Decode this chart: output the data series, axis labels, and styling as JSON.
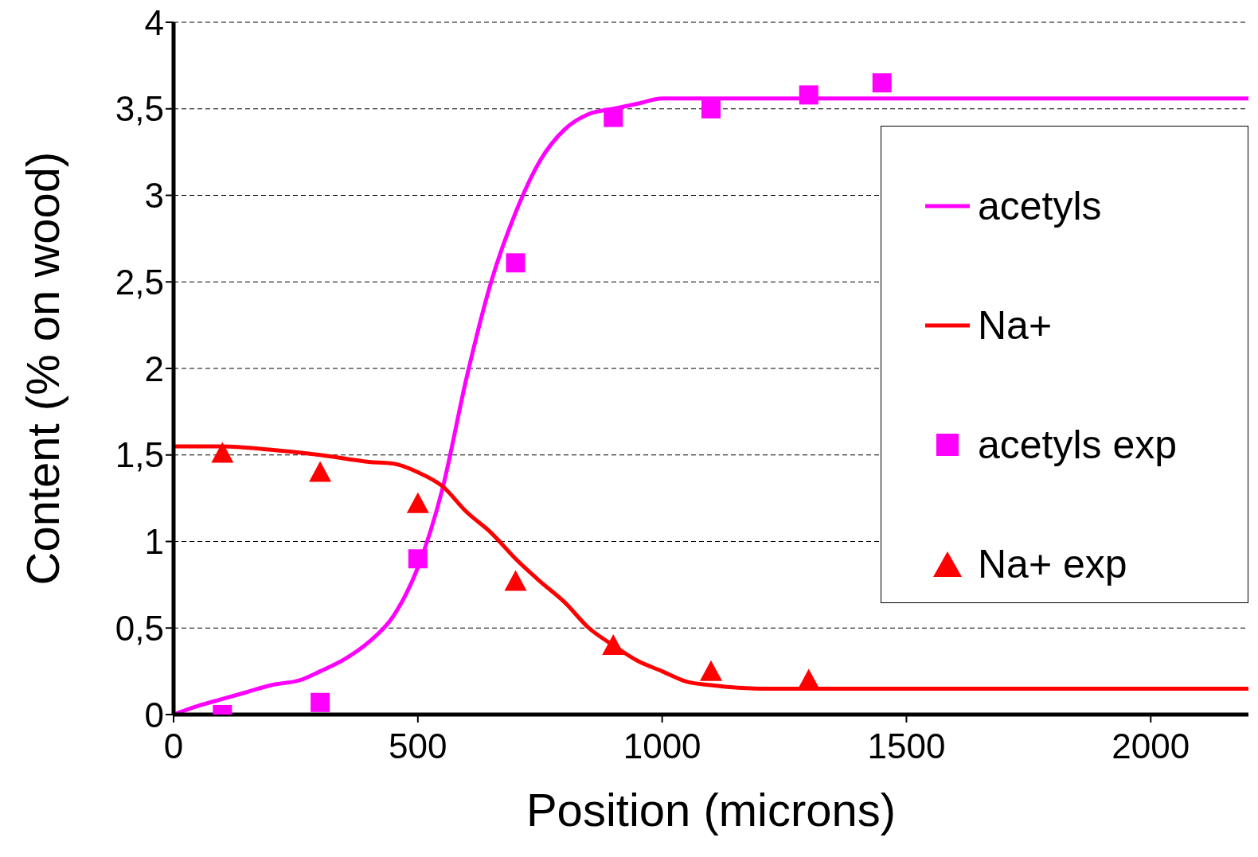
{
  "chart_data": {
    "type": "line",
    "xlabel": "Position (microns)",
    "ylabel": "Content (% on wood)",
    "xlim": [
      0,
      2200
    ],
    "xticks": [
      0,
      500,
      1000,
      1500,
      2000
    ],
    "ylim": [
      0,
      4
    ],
    "yticks": [
      0,
      {
        "value": 0.5,
        "label": "0,5"
      },
      1,
      {
        "value": 1.5,
        "label": "1,5"
      },
      2,
      {
        "value": 2.5,
        "label": "2,5"
      },
      3,
      {
        "value": 3.5,
        "label": "3,5"
      },
      4
    ],
    "grid": "y",
    "legend": "right",
    "line_style": "solid",
    "series": [
      {
        "name": "acetyls",
        "marker": "none",
        "color": "#ff00ff",
        "x": [
          0,
          50,
          100,
          150,
          200,
          260,
          300,
          350,
          400,
          450,
          500,
          550,
          600,
          650,
          700,
          750,
          800,
          850,
          900,
          950,
          1000,
          1050,
          1500,
          2200
        ],
        "values": [
          0,
          0.05,
          0.09,
          0.13,
          0.17,
          0.2,
          0.25,
          0.32,
          0.42,
          0.57,
          0.85,
          1.3,
          1.95,
          2.5,
          2.9,
          3.2,
          3.38,
          3.47,
          3.5,
          3.53,
          3.56,
          3.56,
          3.56,
          3.56
        ]
      },
      {
        "name": "Na+",
        "marker": "none",
        "color": "#ff0000",
        "x": [
          0,
          50,
          100,
          200,
          300,
          400,
          450,
          500,
          550,
          600,
          650,
          700,
          750,
          800,
          850,
          900,
          950,
          1000,
          1050,
          1100,
          1200,
          2200
        ],
        "values": [
          1.55,
          1.55,
          1.55,
          1.53,
          1.5,
          1.46,
          1.45,
          1.4,
          1.32,
          1.17,
          1.05,
          0.9,
          0.77,
          0.65,
          0.5,
          0.4,
          0.31,
          0.25,
          0.19,
          0.17,
          0.15,
          0.15
        ]
      },
      {
        "name": "acetyls exp",
        "type": "scatter",
        "marker": "square",
        "color": "#ff00ff",
        "x": [
          100,
          300,
          500,
          700,
          900,
          1100,
          1300,
          1450
        ],
        "values": [
          0,
          0.07,
          0.9,
          2.61,
          3.45,
          3.5,
          3.58,
          3.65
        ]
      },
      {
        "name": "Na+ exp",
        "type": "scatter",
        "marker": "triangle",
        "color": "#ff0000",
        "x": [
          100,
          300,
          500,
          700,
          900,
          1100,
          1300
        ],
        "values": [
          1.51,
          1.4,
          1.22,
          0.77,
          0.4,
          0.25,
          0.2
        ]
      }
    ]
  }
}
